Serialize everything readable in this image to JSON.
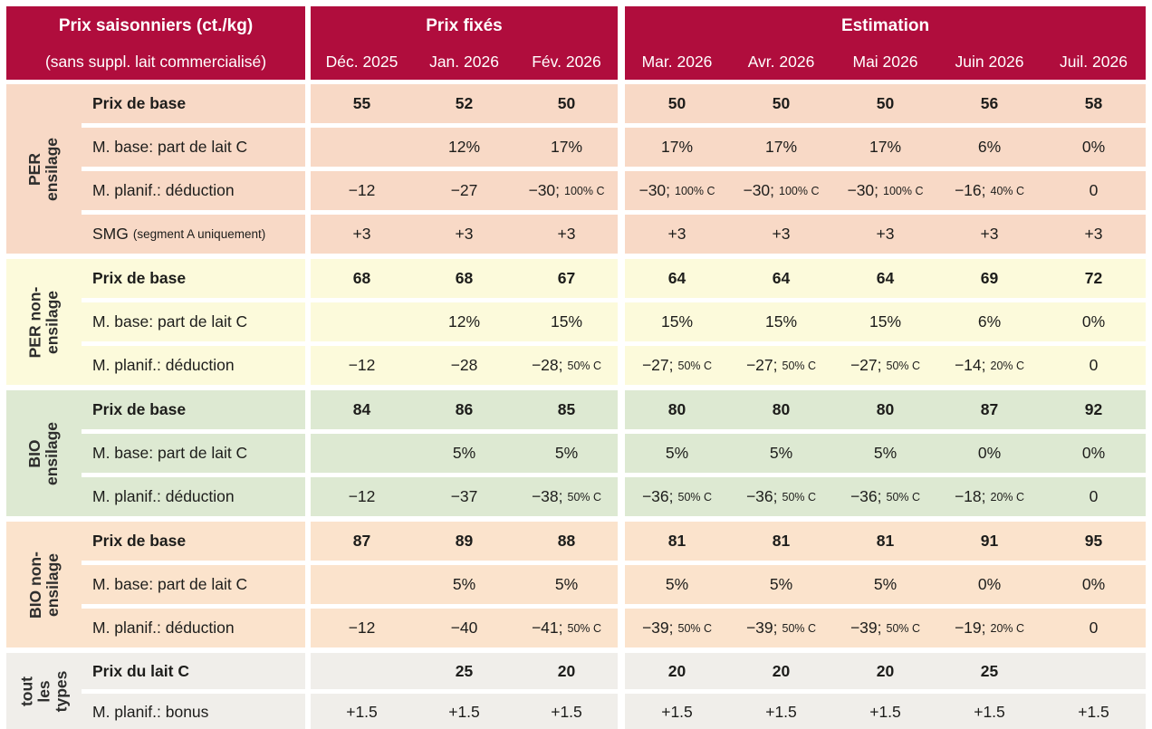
{
  "header": {
    "title": "Prix saisonniers (ct./kg)",
    "subtitle": "(sans suppl. lait commercialisé)",
    "fixed_label": "Prix fixés",
    "estimation_label": "Estimation",
    "fixed_months": [
      "Déc. 2025",
      "Jan. 2026",
      "Fév. 2026"
    ],
    "estimation_months": [
      "Mar. 2026",
      "Avr. 2026",
      "Mai 2026",
      "Juin 2026",
      "Juil. 2026"
    ]
  },
  "colors": {
    "header_bg": "#b00d3d",
    "per_ensilage": "#f8d9c6",
    "per_non_ensilage": "#fcfadb",
    "bio_ensilage": "#dde9d2",
    "bio_non_ensilage": "#fbe3cc",
    "tous_types": "#f0eeea",
    "text": "#1d1d1b"
  },
  "groups": [
    {
      "id": "per-ensilage",
      "label_lines": [
        "PER",
        "ensilage"
      ],
      "color_key": "per_ensilage",
      "rows": [
        {
          "label": "Prix de base",
          "bold": true,
          "cells": [
            "55",
            "52",
            "50",
            "50",
            "50",
            "50",
            "56",
            "58"
          ]
        },
        {
          "label": "M. base: part de lait C",
          "cells": [
            "",
            "12%",
            "17%",
            "17%",
            "17%",
            "17%",
            "6%",
            "0%"
          ]
        },
        {
          "label": "M. planif.: déduction",
          "cells": [
            "−12",
            "−27",
            {
              "m": "−30;",
              "s": "100% C"
            },
            {
              "m": "−30;",
              "s": "100% C"
            },
            {
              "m": "−30;",
              "s": "100% C"
            },
            {
              "m": "−30;",
              "s": "100% C"
            },
            {
              "m": "−16;",
              "s": "40% C"
            },
            "0"
          ]
        },
        {
          "label": "SMG",
          "label_small": "(segment A uniquement)",
          "cells": [
            "+3",
            "+3",
            "+3",
            "+3",
            "+3",
            "+3",
            "+3",
            "+3"
          ]
        }
      ]
    },
    {
      "id": "per-non-ensilage",
      "label_lines": [
        "PER non-",
        "ensilage"
      ],
      "color_key": "per_non_ensilage",
      "rows": [
        {
          "label": "Prix de base",
          "bold": true,
          "cells": [
            "68",
            "68",
            "67",
            "64",
            "64",
            "64",
            "69",
            "72"
          ]
        },
        {
          "label": "M. base: part de lait C",
          "cells": [
            "",
            "12%",
            "15%",
            "15%",
            "15%",
            "15%",
            "6%",
            "0%"
          ]
        },
        {
          "label": "M. planif.: déduction",
          "cells": [
            "−12",
            "−28",
            {
              "m": "−28;",
              "s": "50% C"
            },
            {
              "m": "−27;",
              "s": "50% C"
            },
            {
              "m": "−27;",
              "s": "50% C"
            },
            {
              "m": "−27;",
              "s": "50% C"
            },
            {
              "m": "−14;",
              "s": "20% C"
            },
            "0"
          ]
        }
      ]
    },
    {
      "id": "bio-ensilage",
      "label_lines": [
        "BIO",
        "ensilage"
      ],
      "color_key": "bio_ensilage",
      "rows": [
        {
          "label": "Prix de base",
          "bold": true,
          "cells": [
            "84",
            "86",
            "85",
            "80",
            "80",
            "80",
            "87",
            "92"
          ]
        },
        {
          "label": "M. base: part de lait C",
          "cells": [
            "",
            "5%",
            "5%",
            "5%",
            "5%",
            "5%",
            "0%",
            "0%"
          ]
        },
        {
          "label": "M. planif.: déduction",
          "cells": [
            "−12",
            "−37",
            {
              "m": "−38;",
              "s": "50% C"
            },
            {
              "m": "−36;",
              "s": "50% C"
            },
            {
              "m": "−36;",
              "s": "50% C"
            },
            {
              "m": "−36;",
              "s": "50% C"
            },
            {
              "m": "−18;",
              "s": "20% C"
            },
            "0"
          ]
        }
      ]
    },
    {
      "id": "bio-non-ensilage",
      "label_lines": [
        "BIO non-",
        "ensilage"
      ],
      "color_key": "bio_non_ensilage",
      "rows": [
        {
          "label": "Prix de base",
          "bold": true,
          "cells": [
            "87",
            "89",
            "88",
            "81",
            "81",
            "81",
            "91",
            "95"
          ]
        },
        {
          "label": "M. base: part de lait C",
          "cells": [
            "",
            "5%",
            "5%",
            "5%",
            "5%",
            "5%",
            "0%",
            "0%"
          ]
        },
        {
          "label": "M. planif.: déduction",
          "cells": [
            "−12",
            "−40",
            {
              "m": "−41;",
              "s": "50% C"
            },
            {
              "m": "−39;",
              "s": "50% C"
            },
            {
              "m": "−39;",
              "s": "50% C"
            },
            {
              "m": "−39;",
              "s": "50% C"
            },
            {
              "m": "−19;",
              "s": "20% C"
            },
            "0"
          ]
        }
      ]
    },
    {
      "id": "tous-types",
      "label_lines": [
        "tout",
        "les",
        "types"
      ],
      "color_key": "tous_types",
      "rows": [
        {
          "label": "Prix du lait C",
          "bold": true,
          "cells": [
            "",
            "25",
            "20",
            "20",
            "20",
            "20",
            "25",
            ""
          ]
        },
        {
          "label": "M. planif.: bonus",
          "cells": [
            "+1.5",
            "+1.5",
            "+1.5",
            "+1.5",
            "+1.5",
            "+1.5",
            "+1.5",
            "+1.5"
          ]
        }
      ]
    }
  ]
}
